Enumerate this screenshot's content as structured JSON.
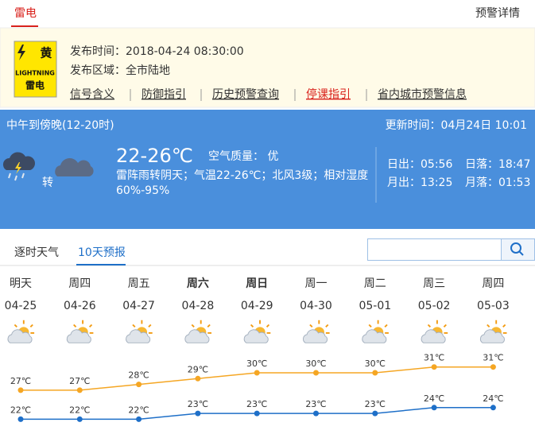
{
  "tabs": {
    "active": "雷电",
    "detail": "预警详情"
  },
  "warning": {
    "icon": {
      "symbol": "黄",
      "en": "LIGHTNING",
      "name": "雷电"
    },
    "publish_time": "发布时间：2018-04-24 08:30:00",
    "area": "发布区域：全市陆地",
    "links": [
      "信号含义",
      "防御指引",
      "历史预警查询",
      "停课指引",
      "省内城市预警信息"
    ]
  },
  "now": {
    "period": "中午到傍晚(12-20时)",
    "updated": "更新时间：04月24日 10:01",
    "change": "转",
    "temp": "22-26℃",
    "air_quality": "空气质量： 优",
    "desc": [
      "雷阵雨转阴天；气温22-26℃；北风3级；相对湿度",
      "60%-95%"
    ],
    "sunrise": "日出：05:56",
    "sunset": "日落：18:47",
    "moonrise": "月出：13:25",
    "moonset": "月落：01:53"
  },
  "forecast": {
    "tabs": [
      "逐时天气",
      "10天预报"
    ],
    "weekdays": [
      "明天",
      "周四",
      "周五",
      "周六",
      "周日",
      "周一",
      "周二",
      "周三",
      "周四"
    ],
    "dates": [
      "04-25",
      "04-26",
      "04-27",
      "04-28",
      "04-29",
      "04-30",
      "05-01",
      "05-02",
      "05-03"
    ],
    "highs": {
      "values": [
        27,
        27,
        28,
        29,
        30,
        30,
        30,
        31,
        31
      ],
      "value_labels": [
        "27℃",
        "27℃",
        "28℃",
        "29℃",
        "30℃",
        "30℃",
        "30℃",
        "31℃",
        "31℃"
      ],
      "color": "#f5a623"
    },
    "lows": {
      "values": [
        22,
        22,
        22,
        23,
        23,
        23,
        23,
        24,
        24
      ],
      "value_labels": [
        "22℃",
        "22℃",
        "22℃",
        "23℃",
        "23℃",
        "23℃",
        "23℃",
        "24℃",
        "24℃"
      ],
      "color": "#1e6fc8"
    }
  }
}
